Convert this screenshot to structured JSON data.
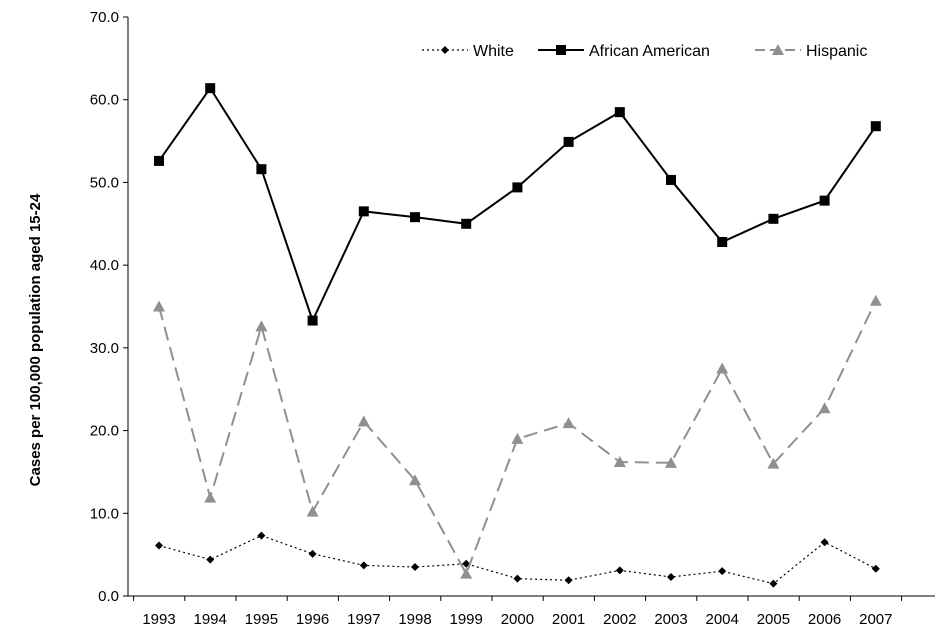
{
  "chart_data": {
    "type": "line",
    "title": "",
    "xlabel": "",
    "ylabel": "Cases per 100,000 population aged 15-24",
    "ylim": [
      0,
      70
    ],
    "yticks": [
      "0.0",
      "10.0",
      "20.0",
      "30.0",
      "40.0",
      "50.0",
      "60.0",
      "70.0"
    ],
    "categories": [
      "1993",
      "1994",
      "1995",
      "1996",
      "1997",
      "1998",
      "1999",
      "2000",
      "2001",
      "2002",
      "2003",
      "2004",
      "2005",
      "2006",
      "2007"
    ],
    "legend_position": "top-right",
    "grid": false,
    "series": [
      {
        "name": "White",
        "color": "#000000",
        "line_style": "dotted",
        "marker": "diamond",
        "values": [
          6.1,
          4.4,
          7.3,
          5.1,
          3.7,
          3.5,
          3.9,
          2.1,
          1.9,
          3.1,
          2.3,
          3.0,
          1.5,
          6.5,
          3.3
        ]
      },
      {
        "name": "African American",
        "color": "#000000",
        "line_style": "solid",
        "marker": "square",
        "values": [
          52.6,
          61.4,
          51.6,
          33.3,
          46.5,
          45.8,
          45.0,
          49.4,
          54.9,
          58.5,
          50.3,
          42.8,
          45.6,
          47.8,
          56.8
        ]
      },
      {
        "name": "Hispanic",
        "color": "#909090",
        "line_style": "dashed",
        "marker": "triangle",
        "values": [
          35.0,
          11.9,
          32.6,
          10.2,
          21.1,
          14.0,
          2.7,
          19.0,
          20.9,
          16.2,
          16.1,
          27.5,
          16.0,
          22.7,
          35.7
        ]
      }
    ]
  }
}
